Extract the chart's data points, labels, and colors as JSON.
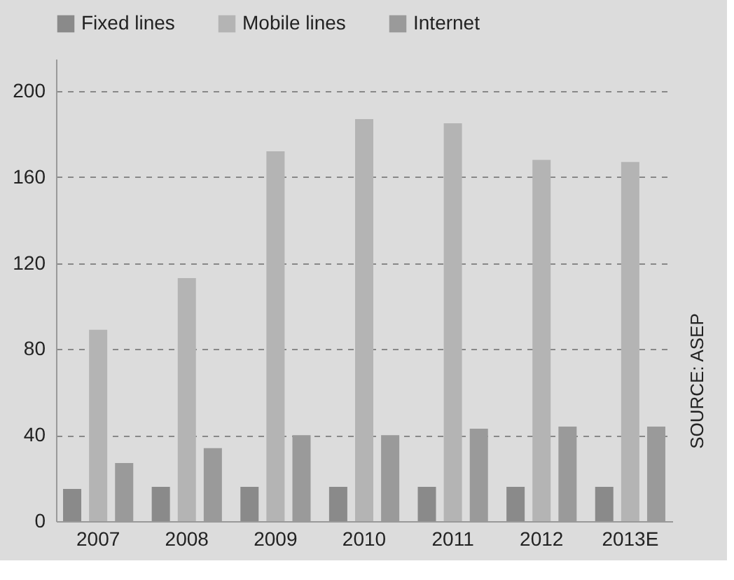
{
  "chart_data": {
    "type": "bar",
    "categories": [
      "2007",
      "2008",
      "2009",
      "2010",
      "2011",
      "2012",
      "2013E"
    ],
    "series": [
      {
        "name": "Fixed lines",
        "color": "#8a8a8a",
        "values": [
          15,
          16,
          16,
          16,
          16,
          16,
          16
        ]
      },
      {
        "name": "Mobile lines",
        "color": "#b4b4b4",
        "values": [
          89,
          113,
          172,
          187,
          185,
          168,
          167
        ]
      },
      {
        "name": "Internet",
        "color": "#9a9a9a",
        "values": [
          27,
          34,
          40,
          40,
          43,
          44,
          44
        ]
      }
    ],
    "ylim": [
      0,
      215
    ],
    "yticks": [
      0,
      40,
      80,
      120,
      160,
      200
    ],
    "grid": "y",
    "legend": "top",
    "annotations": [
      "SOURCE: ASEP"
    ]
  }
}
